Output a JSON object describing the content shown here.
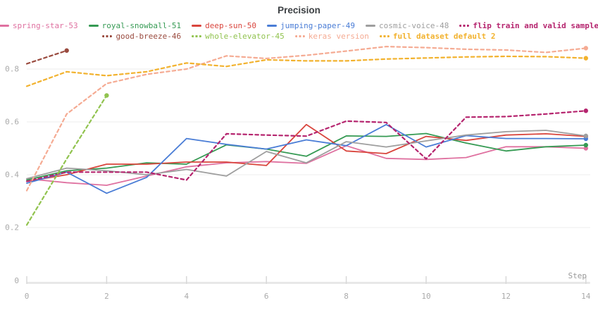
{
  "title": "Precision",
  "axis": {
    "x_label": "Step",
    "x_ticks": [
      0,
      2,
      4,
      6,
      8,
      10,
      12,
      14
    ],
    "y_ticks": [
      "0.8",
      "0.6",
      "0.4",
      "0.2"
    ],
    "y_tick_values": [
      0.8,
      0.6,
      0.4,
      0.2
    ],
    "y_zero_label": "0",
    "x_zero_label": "0"
  },
  "colors": {
    "title_text": "#3c4043",
    "axis_text": "#aaaaaa",
    "gridline": "#ececec",
    "axis_bar": "#e8e8e8",
    "tick": "#d8d8d8",
    "background": "#ffffff"
  },
  "chart_data": {
    "type": "line",
    "title": "Precision",
    "xlabel": "Step",
    "ylabel": "",
    "xlim": [
      0,
      14
    ],
    "ylim": [
      0,
      0.91
    ],
    "grid": "horizontal",
    "legend_position": "top",
    "legend_rows": [
      [
        0,
        1,
        2,
        3,
        4,
        5
      ],
      [
        6,
        7,
        8,
        9
      ]
    ],
    "series": [
      {
        "name": "spring-star-53",
        "color": "#df71a0",
        "style": "solid",
        "bold": false,
        "x": [
          0,
          1,
          2,
          3,
          4,
          5,
          6,
          7,
          8,
          9,
          10,
          11,
          12,
          13,
          14
        ],
        "values": [
          0.385,
          0.37,
          0.36,
          0.395,
          0.43,
          0.445,
          0.45,
          0.443,
          0.51,
          0.462,
          0.458,
          0.465,
          0.506,
          0.506,
          0.5
        ]
      },
      {
        "name": "royal-snowball-51",
        "color": "#359a53",
        "style": "solid",
        "bold": false,
        "x": [
          0,
          1,
          2,
          3,
          4,
          5,
          6,
          7,
          8,
          9,
          10,
          11,
          12,
          13,
          14
        ],
        "values": [
          0.38,
          0.415,
          0.425,
          0.445,
          0.44,
          0.513,
          0.497,
          0.47,
          0.547,
          0.545,
          0.556,
          0.52,
          0.49,
          0.506,
          0.512
        ]
      },
      {
        "name": "deep-sun-50",
        "color": "#d9453d",
        "style": "solid",
        "bold": false,
        "x": [
          0,
          1,
          2,
          3,
          4,
          5,
          6,
          7,
          8,
          9,
          10,
          11,
          12,
          13,
          14
        ],
        "values": [
          0.375,
          0.4,
          0.44,
          0.44,
          0.448,
          0.448,
          0.435,
          0.59,
          0.49,
          0.48,
          0.545,
          0.53,
          0.55,
          0.555,
          0.545
        ]
      },
      {
        "name": "jumping-paper-49",
        "color": "#4a7dd6",
        "style": "solid",
        "bold": false,
        "x": [
          0,
          1,
          2,
          3,
          4,
          5,
          6,
          7,
          8,
          9,
          10,
          11,
          12,
          13,
          14
        ],
        "values": [
          0.368,
          0.41,
          0.33,
          0.39,
          0.537,
          0.515,
          0.497,
          0.532,
          0.51,
          0.59,
          0.505,
          0.548,
          0.537,
          0.537,
          0.536
        ]
      },
      {
        "name": "cosmic-voice-48",
        "color": "#9e9e9e",
        "style": "solid",
        "bold": false,
        "x": [
          0,
          1,
          2,
          3,
          4,
          5,
          6,
          7,
          8,
          9,
          10,
          11,
          12,
          13,
          14
        ],
        "values": [
          0.385,
          0.425,
          0.415,
          0.4,
          0.42,
          0.395,
          0.488,
          0.445,
          0.525,
          0.505,
          0.528,
          0.55,
          0.563,
          0.568,
          0.547
        ]
      },
      {
        "name": "flip train and valid sample",
        "color": "#b5246e",
        "style": "dashed",
        "bold": true,
        "x": [
          0,
          1,
          2,
          3,
          4,
          5,
          6,
          7,
          8,
          9,
          10,
          11,
          12,
          13,
          14
        ],
        "values": [
          0.375,
          0.41,
          0.41,
          0.41,
          0.38,
          0.555,
          0.55,
          0.546,
          0.603,
          0.598,
          0.46,
          0.618,
          0.62,
          0.63,
          0.642
        ]
      },
      {
        "name": "good-breeze-46",
        "color": "#9a4b3f",
        "style": "dashed",
        "bold": false,
        "x": [
          0,
          1
        ],
        "values": [
          0.82,
          0.87
        ]
      },
      {
        "name": "whole-elevator-45",
        "color": "#91c34f",
        "style": "dashed",
        "bold": false,
        "x": [
          0,
          1,
          2
        ],
        "values": [
          0.21,
          0.46,
          0.7
        ]
      },
      {
        "name": "keras version",
        "color": "#f5ab93",
        "style": "dashed",
        "bold": false,
        "x": [
          0,
          1,
          2,
          3,
          4,
          5,
          6,
          7,
          8,
          9,
          10,
          11,
          12,
          13,
          14
        ],
        "values": [
          0.34,
          0.63,
          0.745,
          0.78,
          0.8,
          0.85,
          0.84,
          0.852,
          0.868,
          0.885,
          0.881,
          0.875,
          0.872,
          0.863,
          0.879
        ]
      },
      {
        "name": "full dataset default 2",
        "color": "#f2b22e",
        "style": "dashed",
        "bold": true,
        "x": [
          0,
          1,
          2,
          3,
          4,
          5,
          6,
          7,
          8,
          9,
          10,
          11,
          12,
          13,
          14
        ],
        "values": [
          0.735,
          0.79,
          0.775,
          0.79,
          0.823,
          0.81,
          0.835,
          0.831,
          0.831,
          0.838,
          0.842,
          0.846,
          0.848,
          0.847,
          0.841
        ]
      }
    ]
  }
}
